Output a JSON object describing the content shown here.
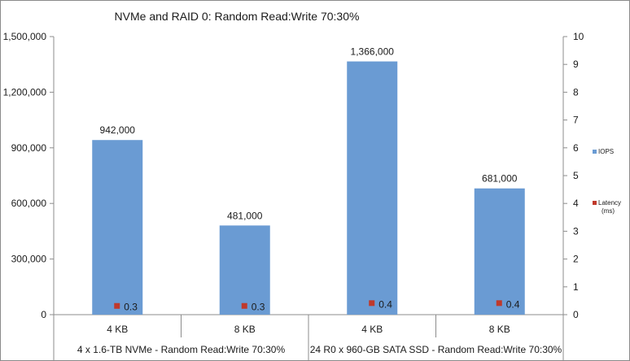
{
  "chart_data": {
    "type": "bar",
    "title": "NVMe and RAID 0: Random Read:Write 70:30%",
    "categories": [
      "4 KB",
      "8 KB",
      "4 KB",
      "8 KB"
    ],
    "groups": [
      {
        "label": "4 x 1.6-TB NVMe - Random Read:Write 70:30%",
        "categories": [
          "4 KB",
          "8 KB"
        ]
      },
      {
        "label": "24 R0 x 960-GB SATA SSD - Random Read:Write 70:30%",
        "categories": [
          "4 KB",
          "8 KB"
        ]
      }
    ],
    "series": [
      {
        "name": "IOPS",
        "type": "bar",
        "axis": "left",
        "color": "#6a9bd3",
        "values": [
          942000,
          481000,
          1366000,
          681000
        ],
        "labels": [
          "942,000",
          "481,000",
          "1,366,000",
          "681,000"
        ]
      },
      {
        "name": "Latency (ms)",
        "type": "marker",
        "axis": "right",
        "color": "#c0392b",
        "values": [
          0.3,
          0.3,
          0.4,
          0.4
        ],
        "labels": [
          "0.3",
          "0.3",
          "0.4",
          "0.4"
        ]
      }
    ],
    "y_left": {
      "min": 0,
      "max": 1500000,
      "ticks": [
        0,
        300000,
        600000,
        900000,
        1200000,
        1500000
      ],
      "tick_labels": [
        "0",
        "300,000",
        "600,000",
        "900,000",
        "1,200,000",
        "1,500,000"
      ]
    },
    "y_right": {
      "min": 0,
      "max": 10,
      "ticks": [
        0,
        1,
        2,
        3,
        4,
        5,
        6,
        7,
        8,
        9,
        10
      ],
      "tick_labels": [
        "0",
        "1",
        "2",
        "3",
        "4",
        "5",
        "6",
        "7",
        "8",
        "9",
        "10"
      ]
    },
    "legend": {
      "position": "right",
      "entries": [
        {
          "lines": [
            "IOPS"
          ],
          "color": "#6a9bd3"
        },
        {
          "lines": [
            "Latency",
            "(ms)"
          ],
          "color": "#c0392b"
        }
      ]
    },
    "grid": false
  }
}
